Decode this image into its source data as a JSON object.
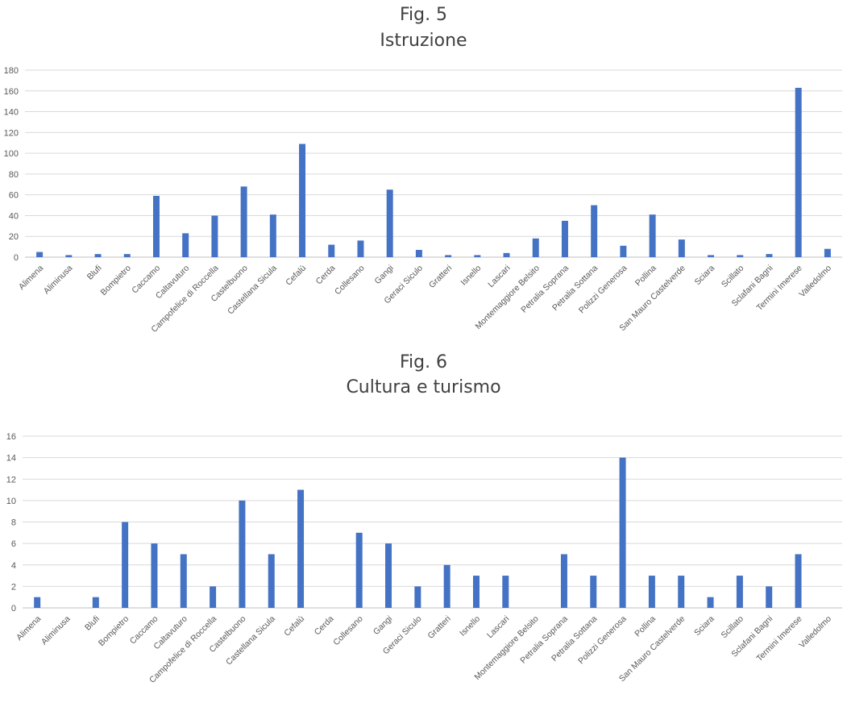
{
  "chart_data": [
    {
      "type": "bar",
      "fig": "Fig. 5",
      "title": "Istruzione",
      "categories": [
        "Alimena",
        "Aliminusa",
        "Blufi",
        "Bompietro",
        "Caccamo",
        "Caltavuturo",
        "Campofelice di Roccella",
        "Castelbuono",
        "Castellana Sicula",
        "Cefalù",
        "Cerda",
        "Collesano",
        "Gangi",
        "Geraci Siculo",
        "Gratteri",
        "Isnello",
        "Lascari",
        "Montemaggiore Belsito",
        "Petralia Soprana",
        "Petralia Sottana",
        "Polizzi Generosa",
        "Pollina",
        "San Mauro Castelverde",
        "Sciara",
        "Scillato",
        "Sclafani Bagni",
        "Termini Imerese",
        "Valledolmo"
      ],
      "values": [
        5,
        2,
        3,
        3,
        59,
        23,
        40,
        68,
        41,
        109,
        12,
        16,
        65,
        7,
        2,
        2,
        4,
        18,
        35,
        50,
        11,
        41,
        17,
        2,
        2,
        3,
        163,
        8
      ],
      "ylim": [
        0,
        180
      ],
      "yticks": [
        0,
        20,
        40,
        60,
        80,
        100,
        120,
        140,
        160,
        180
      ],
      "grid": true,
      "color": "#4472C4"
    },
    {
      "type": "bar",
      "fig": "Fig. 6",
      "title": "Cultura e turismo",
      "categories": [
        "Alimena",
        "Aliminusa",
        "Blufi",
        "Bompietro",
        "Caccamo",
        "Caltavuturo",
        "Campofelice di Roccella",
        "Castelbuono",
        "Castellana Sicula",
        "Cefalù",
        "Cerda",
        "Collesano",
        "Gangi",
        "Geraci Siculo",
        "Gratteri",
        "Isnello",
        "Lascari",
        "Montemaggiore Belsito",
        "Petralia Soprana",
        "Petralia Sottana",
        "Polizzi Generosa",
        "Pollina",
        "San Mauro Castelverde",
        "Sciara",
        "Scillato",
        "Sclafani Bagni",
        "Termini Imerese",
        "Valledolmo"
      ],
      "values": [
        1,
        0,
        1,
        8,
        6,
        5,
        2,
        10,
        5,
        11,
        0,
        7,
        6,
        2,
        4,
        3,
        3,
        0,
        5,
        3,
        14,
        3,
        3,
        1,
        3,
        2,
        5,
        0
      ],
      "ylim": [
        0,
        16
      ],
      "yticks": [
        0,
        2,
        4,
        6,
        8,
        10,
        12,
        14,
        16
      ],
      "grid": true,
      "color": "#4472C4"
    }
  ]
}
